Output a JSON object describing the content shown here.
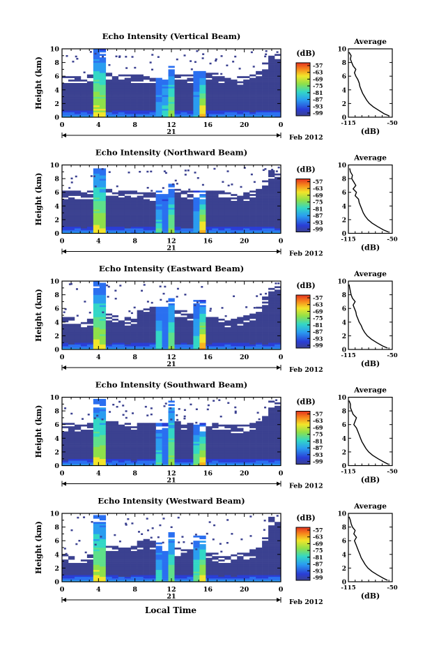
{
  "figure": {
    "xlabel": "Local Time",
    "date_label": "Feb 2012",
    "day_label": "21",
    "unit_label": "(dB)",
    "profile_title": "Average",
    "profile_xlabel": "(dB)"
  },
  "chart_data": [
    {
      "type": "heatmap",
      "title": "Echo Intensity (Vertical Beam)",
      "ylabel": "Height (km)",
      "xlim": [
        0,
        24
      ],
      "ylim": [
        0,
        10
      ],
      "xticks": [
        "0",
        "4",
        "8",
        "12",
        "16",
        "20",
        "0"
      ],
      "yticks": [
        "0",
        "2",
        "4",
        "6",
        "8",
        "10"
      ],
      "colorbar": {
        "label": "(dB)",
        "ticks": [
          "-57",
          "-63",
          "-69",
          "-75",
          "-81",
          "-87",
          "-93",
          "-99"
        ]
      },
      "echo_top_km": [
        6.1,
        6.0,
        6.1,
        5.9,
        6.0,
        6.2,
        6.3,
        6.4,
        6.5,
        6.3,
        6.2,
        6.1,
        6.0,
        5.8,
        5.9,
        6.0,
        6.2,
        6.5,
        6.4,
        6.3,
        6.1,
        6.0,
        6.2,
        6.4,
        6.3,
        6.0,
        5.8,
        5.7,
        5.8,
        6.0,
        6.1,
        6.5,
        8.0,
        9.5,
        9.2
      ],
      "columns": [
        {
          "x": 4.1,
          "width_h": 0.8,
          "top_km": 9.8,
          "peak": 1.0
        },
        {
          "x": 11.0,
          "width_h": 0.45,
          "top_km": 6.0,
          "peak": 0.75
        },
        {
          "x": 11.8,
          "width_h": 0.45,
          "top_km": 7.5,
          "peak": 0.8
        },
        {
          "x": 15.3,
          "width_h": 0.7,
          "top_km": 6.5,
          "peak": 0.85
        }
      ],
      "profile": {
        "xlim": [
          -115,
          -50
        ],
        "xticks": [
          "-115",
          "-50"
        ],
        "yticks": [
          "0",
          "2",
          "4",
          "6",
          "8",
          "10"
        ],
        "height_km": [
          0.2,
          0.5,
          1.0,
          1.5,
          2.0,
          2.5,
          3.0,
          3.5,
          4.0,
          4.5,
          5.0,
          5.5,
          6.0,
          6.5,
          7.0,
          7.5,
          8.0,
          8.5,
          9.0,
          9.5
        ],
        "db": [
          -55,
          -62,
          -70,
          -78,
          -84,
          -88,
          -91,
          -94,
          -96,
          -98,
          -99,
          -101,
          -104,
          -106,
          -104,
          -108,
          -110,
          -112,
          -111,
          -114
        ]
      }
    },
    {
      "type": "heatmap",
      "title": "Echo Intensity (Northward Beam)",
      "ylabel": "Height (km)",
      "xlim": [
        0,
        24
      ],
      "ylim": [
        0,
        10
      ],
      "xticks": [
        "0",
        "4",
        "8",
        "12",
        "16",
        "20",
        "0"
      ],
      "yticks": [
        "0",
        "2",
        "4",
        "6",
        "8",
        "10"
      ],
      "colorbar": {
        "label": "(dB)",
        "ticks": [
          "-57",
          "-63",
          "-69",
          "-75",
          "-81",
          "-87",
          "-93",
          "-99"
        ]
      },
      "echo_top_km": [
        6.0,
        6.1,
        6.0,
        5.9,
        6.1,
        6.2,
        6.3,
        6.4,
        6.4,
        6.2,
        6.1,
        6.0,
        5.9,
        5.8,
        5.8,
        6.0,
        6.1,
        6.3,
        6.4,
        6.2,
        6.1,
        6.0,
        6.1,
        6.3,
        6.2,
        6.0,
        5.9,
        5.8,
        5.7,
        5.9,
        6.0,
        6.4,
        7.5,
        9.0,
        8.8
      ],
      "columns": [
        {
          "x": 4.1,
          "width_h": 0.8,
          "top_km": 9.7,
          "peak": 1.0
        },
        {
          "x": 10.9,
          "width_h": 0.45,
          "top_km": 5.5,
          "peak": 0.75
        },
        {
          "x": 11.8,
          "width_h": 0.45,
          "top_km": 7.0,
          "peak": 0.8
        },
        {
          "x": 15.3,
          "width_h": 0.7,
          "top_km": 6.0,
          "peak": 0.85
        }
      ],
      "profile": {
        "xlim": [
          -115,
          -50
        ],
        "xticks": [
          "-115",
          "-50"
        ],
        "yticks": [
          "0",
          "2",
          "4",
          "6",
          "8",
          "10"
        ],
        "height_km": [
          0.2,
          0.5,
          1.0,
          1.5,
          2.0,
          2.5,
          3.0,
          3.5,
          4.0,
          4.5,
          5.0,
          5.5,
          6.0,
          6.5,
          7.0,
          7.5,
          8.0,
          8.5,
          9.0,
          9.5
        ],
        "db": [
          -56,
          -63,
          -72,
          -80,
          -86,
          -90,
          -93,
          -95,
          -97,
          -99,
          -100,
          -105,
          -103,
          -108,
          -104,
          -107,
          -110,
          -109,
          -112,
          -113
        ]
      }
    },
    {
      "type": "heatmap",
      "title": "Echo Intensity (Eastward Beam)",
      "ylabel": "Height (km)",
      "xlim": [
        0,
        24
      ],
      "ylim": [
        0,
        10
      ],
      "xticks": [
        "0",
        "4",
        "8",
        "12",
        "16",
        "20",
        "0"
      ],
      "yticks": [
        "0",
        "2",
        "4",
        "6",
        "8",
        "10"
      ],
      "colorbar": {
        "label": "(dB)",
        "ticks": [
          "-57",
          "-63",
          "-69",
          "-75",
          "-81",
          "-87",
          "-93",
          "-99"
        ]
      },
      "echo_top_km": [
        4.6,
        4.5,
        4.4,
        4.3,
        4.5,
        4.8,
        5.0,
        5.2,
        5.1,
        4.8,
        4.5,
        4.6,
        5.5,
        6.0,
        6.2,
        6.0,
        5.8,
        5.7,
        5.6,
        5.5,
        5.4,
        5.2,
        5.0,
        4.8,
        4.6,
        4.5,
        4.4,
        4.3,
        4.5,
        4.8,
        5.2,
        6.0,
        7.5,
        9.6,
        9.3
      ],
      "columns": [
        {
          "x": 4.1,
          "width_h": 0.8,
          "top_km": 9.8,
          "peak": 1.0
        },
        {
          "x": 10.9,
          "width_h": 0.45,
          "top_km": 6.0,
          "peak": 0.75
        },
        {
          "x": 11.8,
          "width_h": 0.45,
          "top_km": 7.5,
          "peak": 0.8
        },
        {
          "x": 15.3,
          "width_h": 0.8,
          "top_km": 7.0,
          "peak": 0.85
        }
      ],
      "profile": {
        "xlim": [
          -115,
          -50
        ],
        "xticks": [
          "-115",
          "-50"
        ],
        "yticks": [
          "0",
          "2",
          "4",
          "6",
          "8",
          "10"
        ],
        "height_km": [
          0.2,
          0.5,
          1.0,
          1.5,
          2.0,
          2.5,
          3.0,
          3.5,
          4.0,
          4.5,
          5.0,
          5.5,
          6.0,
          6.5,
          7.0,
          7.5,
          8.0,
          8.5,
          9.0,
          9.5
        ],
        "db": [
          -57,
          -64,
          -73,
          -81,
          -87,
          -91,
          -94,
          -96,
          -99,
          -101,
          -103,
          -104,
          -106,
          -108,
          -105,
          -109,
          -111,
          -112,
          -113,
          -114
        ]
      }
    },
    {
      "type": "heatmap",
      "title": "Echo Intensity (Southward Beam)",
      "ylabel": "Height (km)",
      "xlim": [
        0,
        24
      ],
      "ylim": [
        0,
        10
      ],
      "xticks": [
        "0",
        "4",
        "8",
        "12",
        "16",
        "20",
        "0"
      ],
      "yticks": [
        "0",
        "2",
        "4",
        "6",
        "8",
        "10"
      ],
      "colorbar": {
        "label": "(dB)",
        "ticks": [
          "-57",
          "-63",
          "-69",
          "-75",
          "-81",
          "-87",
          "-93",
          "-99"
        ]
      },
      "echo_top_km": [
        6.0,
        6.0,
        6.1,
        5.9,
        6.0,
        6.1,
        6.2,
        6.3,
        6.4,
        6.2,
        6.0,
        5.9,
        6.0,
        6.1,
        6.0,
        5.9,
        6.0,
        6.2,
        6.3,
        6.2,
        6.0,
        6.0,
        6.1,
        6.2,
        6.1,
        6.0,
        5.9,
        5.8,
        5.8,
        5.9,
        6.0,
        6.3,
        7.2,
        9.4,
        9.0
      ],
      "columns": [
        {
          "x": 4.1,
          "width_h": 0.8,
          "top_km": 9.6,
          "peak": 1.0
        },
        {
          "x": 10.9,
          "width_h": 0.45,
          "top_km": 6.0,
          "peak": 0.75
        },
        {
          "x": 11.8,
          "width_h": 0.45,
          "top_km": 9.5,
          "peak": 0.85
        },
        {
          "x": 15.2,
          "width_h": 0.9,
          "top_km": 6.0,
          "peak": 0.85
        }
      ],
      "profile": {
        "xlim": [
          -115,
          -50
        ],
        "xticks": [
          "-115",
          "-50"
        ],
        "yticks": [
          "0",
          "2",
          "4",
          "6",
          "8",
          "10"
        ],
        "height_km": [
          0.2,
          0.5,
          1.0,
          1.5,
          2.0,
          2.5,
          3.0,
          3.5,
          4.0,
          4.5,
          5.0,
          5.5,
          6.0,
          6.5,
          7.0,
          7.5,
          8.0,
          8.5,
          9.0,
          9.5
        ],
        "db": [
          -56,
          -62,
          -71,
          -79,
          -85,
          -89,
          -92,
          -95,
          -97,
          -99,
          -101,
          -103,
          -107,
          -105,
          -103,
          -108,
          -110,
          -112,
          -112,
          -114
        ]
      }
    },
    {
      "type": "heatmap",
      "title": "Echo Intensity (Westward Beam)",
      "ylabel": "Height (km)",
      "xlim": [
        0,
        24
      ],
      "ylim": [
        0,
        10
      ],
      "xticks": [
        "0",
        "4",
        "8",
        "12",
        "16",
        "20",
        "0"
      ],
      "yticks": [
        "0",
        "2",
        "4",
        "6",
        "8",
        "10"
      ],
      "colorbar": {
        "label": "(dB)",
        "ticks": [
          "-57",
          "-63",
          "-69",
          "-75",
          "-81",
          "-87",
          "-93",
          "-99"
        ]
      },
      "echo_top_km": [
        3.8,
        3.7,
        3.6,
        3.5,
        3.8,
        4.2,
        4.5,
        5.0,
        5.2,
        5.0,
        4.8,
        5.2,
        5.8,
        6.0,
        5.8,
        5.6,
        5.2,
        5.0,
        4.8,
        4.6,
        4.5,
        4.4,
        4.3,
        4.2,
        4.0,
        3.8,
        3.7,
        3.8,
        4.0,
        4.2,
        4.5,
        5.0,
        6.5,
        9.4,
        8.5
      ],
      "columns": [
        {
          "x": 4.1,
          "width_h": 0.8,
          "top_km": 9.7,
          "peak": 1.0
        },
        {
          "x": 10.9,
          "width_h": 0.45,
          "top_km": 5.0,
          "peak": 0.75
        },
        {
          "x": 11.8,
          "width_h": 0.45,
          "top_km": 7.0,
          "peak": 0.8
        },
        {
          "x": 15.2,
          "width_h": 0.8,
          "top_km": 6.5,
          "peak": 0.85
        }
      ],
      "profile": {
        "xlim": [
          -115,
          -50
        ],
        "xticks": [
          "-115",
          "-50"
        ],
        "yticks": [
          "0",
          "2",
          "4",
          "6",
          "8",
          "10"
        ],
        "height_km": [
          0.2,
          0.5,
          1.0,
          1.5,
          2.0,
          2.5,
          3.0,
          3.5,
          4.0,
          4.5,
          5.0,
          5.5,
          6.0,
          6.5,
          7.0,
          7.5,
          8.0,
          8.5,
          9.0,
          9.5
        ],
        "db": [
          -57,
          -63,
          -72,
          -80,
          -86,
          -90,
          -93,
          -96,
          -98,
          -100,
          -102,
          -104,
          -106,
          -103,
          -107,
          -105,
          -109,
          -111,
          -112,
          -114
        ]
      }
    }
  ]
}
